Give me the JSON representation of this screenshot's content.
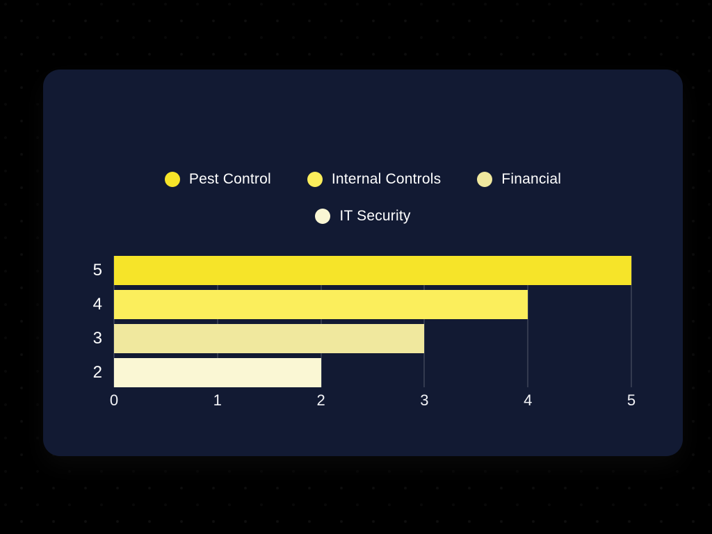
{
  "colors": {
    "page_bg": "#000000",
    "card_bg": "#121A33",
    "grid_line": "rgba(255,255,255,0.28)",
    "text": "#FFFFFF"
  },
  "legend": {
    "rows": [
      [
        {
          "label": "Pest Control",
          "color": "#F6E429"
        },
        {
          "label": "Internal Controls",
          "color": "#FBEE5C"
        },
        {
          "label": "Financial",
          "color": "#F0E89E"
        }
      ],
      [
        {
          "label": "IT Security",
          "color": "#FAF7D4"
        }
      ]
    ]
  },
  "chart_data": {
    "type": "bar",
    "orientation": "horizontal",
    "title": "",
    "xlabel": "",
    "ylabel": "",
    "categories": [
      "5",
      "4",
      "3",
      "2"
    ],
    "series": [
      {
        "name": "Pest Control",
        "value": 5,
        "color": "#F6E429"
      },
      {
        "name": "Internal Controls",
        "value": 4,
        "color": "#FBEE5C"
      },
      {
        "name": "Financial",
        "value": 3,
        "color": "#F0E89E"
      },
      {
        "name": "IT Security",
        "value": 2,
        "color": "#FAF7D4"
      }
    ],
    "values": [
      5,
      4,
      3,
      2
    ],
    "xlim": [
      0,
      5
    ],
    "xticks": [
      "0",
      "1",
      "2",
      "3",
      "4",
      "5"
    ],
    "grid": true,
    "legend_position": "top"
  }
}
